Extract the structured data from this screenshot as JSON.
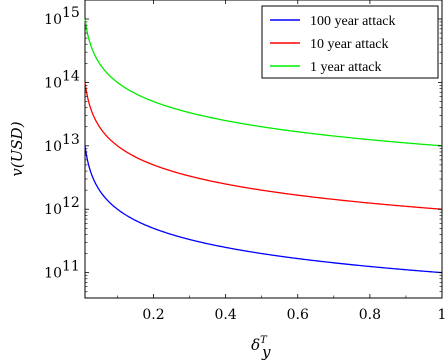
{
  "chart_data": {
    "type": "line",
    "title": "",
    "xlabel": "δ",
    "xlabel_sup": "T",
    "xlabel_sub": "y",
    "ylabel": "v(USD)",
    "xlim": [
      0.01,
      1.0
    ],
    "ylim_exp": [
      10.6,
      15.3
    ],
    "yscale": "log",
    "xticks": [
      0.2,
      0.4,
      0.6,
      0.8,
      1
    ],
    "xtick_labels": [
      "0.2",
      "0.4",
      "0.6",
      "0.8",
      "1"
    ],
    "yticks_exp": [
      11,
      12,
      13,
      14,
      15
    ],
    "ytick_base": "10",
    "ytick_exps": [
      "11",
      "12",
      "13",
      "14",
      "15"
    ],
    "grid": false,
    "legend_position": "top-right",
    "series": [
      {
        "name": "100 year attack",
        "color": "#0000ff",
        "v0": 100000000000.0,
        "x": [
          0.01,
          0.05,
          0.1,
          0.2,
          0.4,
          0.6,
          0.8,
          1.0
        ],
        "y": [
          10000000000000.0,
          2000000000000.0,
          1000000000000.0,
          500000000000.0,
          250000000000.0,
          167000000000.0,
          125000000000.0,
          100000000000.0
        ]
      },
      {
        "name": "10 year attack",
        "color": "#ff0000",
        "v0": 1000000000000.0,
        "x": [
          0.01,
          0.05,
          0.1,
          0.2,
          0.4,
          0.6,
          0.8,
          1.0
        ],
        "y": [
          100000000000000.0,
          20000000000000.0,
          10000000000000.0,
          5000000000000.0,
          2500000000000.0,
          1670000000000.0,
          1250000000000.0,
          1000000000000.0
        ]
      },
      {
        "name": "1 year attack",
        "color": "#00ee00",
        "v0": 10000000000000.0,
        "x": [
          0.01,
          0.05,
          0.1,
          0.2,
          0.4,
          0.6,
          0.8,
          1.0
        ],
        "y": [
          1000000000000000.0,
          200000000000000.0,
          100000000000000.0,
          50000000000000.0,
          25000000000000.0,
          16700000000000.0,
          12500000000000.0,
          10000000000000.0
        ]
      }
    ]
  }
}
